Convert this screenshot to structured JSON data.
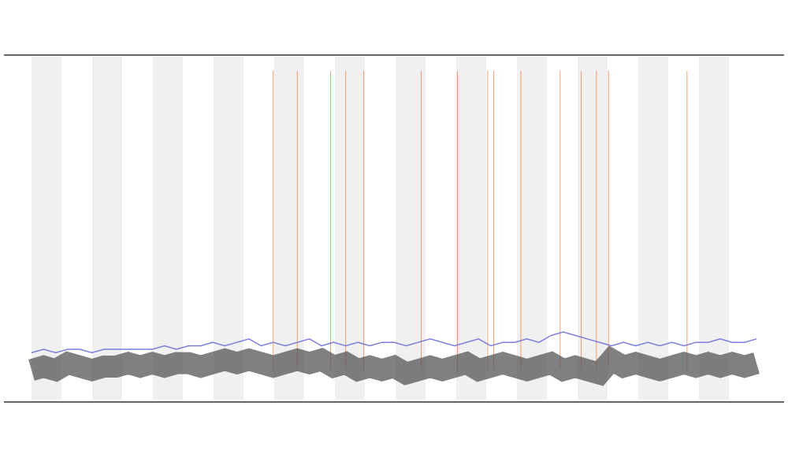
{
  "chart_data": {
    "type": "line",
    "x": [
      0,
      4,
      8,
      12,
      16,
      20,
      24,
      28,
      32,
      36,
      40,
      44,
      48,
      52,
      56,
      60,
      64,
      68,
      72,
      76,
      80,
      84,
      88,
      92,
      96,
      100,
      104,
      108,
      112,
      116,
      120,
      124,
      128,
      132,
      136,
      140,
      144,
      148,
      152,
      156,
      160,
      164,
      168,
      172,
      176,
      180,
      184,
      188,
      192,
      196,
      200,
      204,
      208,
      212,
      216,
      220,
      224,
      228,
      232,
      236,
      240
    ],
    "xlim": [
      0,
      240
    ],
    "ylim": [
      0,
      100
    ],
    "series": [
      {
        "color": "#555555",
        "values": [
          9,
          10,
          9,
          11,
          10,
          9,
          10,
          10,
          11,
          10,
          11,
          10,
          11,
          11,
          10,
          11,
          12,
          11,
          12,
          11,
          10,
          11,
          12,
          11,
          12,
          10,
          11,
          9,
          10,
          9,
          10,
          8,
          9,
          10,
          9,
          10,
          11,
          9,
          10,
          11,
          10,
          9,
          10,
          11,
          9,
          10,
          9,
          8,
          12,
          10,
          11,
          10,
          9,
          10,
          11,
          10,
          11,
          10,
          11,
          10,
          11
        ]
      },
      {
        "color": "#6f6fd8",
        "values": [
          14,
          15,
          14,
          15,
          15,
          14,
          15,
          15,
          15,
          15,
          15,
          16,
          15,
          16,
          16,
          17,
          16,
          17,
          18,
          16,
          17,
          16,
          17,
          18,
          16,
          17,
          16,
          17,
          16,
          17,
          17,
          16,
          17,
          18,
          17,
          16,
          17,
          18,
          16,
          17,
          17,
          18,
          17,
          19,
          20,
          19,
          18,
          17,
          16,
          17,
          16,
          17,
          16,
          17,
          16,
          17,
          17,
          18,
          17,
          17,
          18
        ]
      }
    ],
    "events": [
      80,
      88,
      99,
      104,
      110,
      129,
      141,
      151,
      153,
      162,
      175,
      182,
      187,
      191,
      217
    ],
    "event_color": "#e8773a"
  }
}
